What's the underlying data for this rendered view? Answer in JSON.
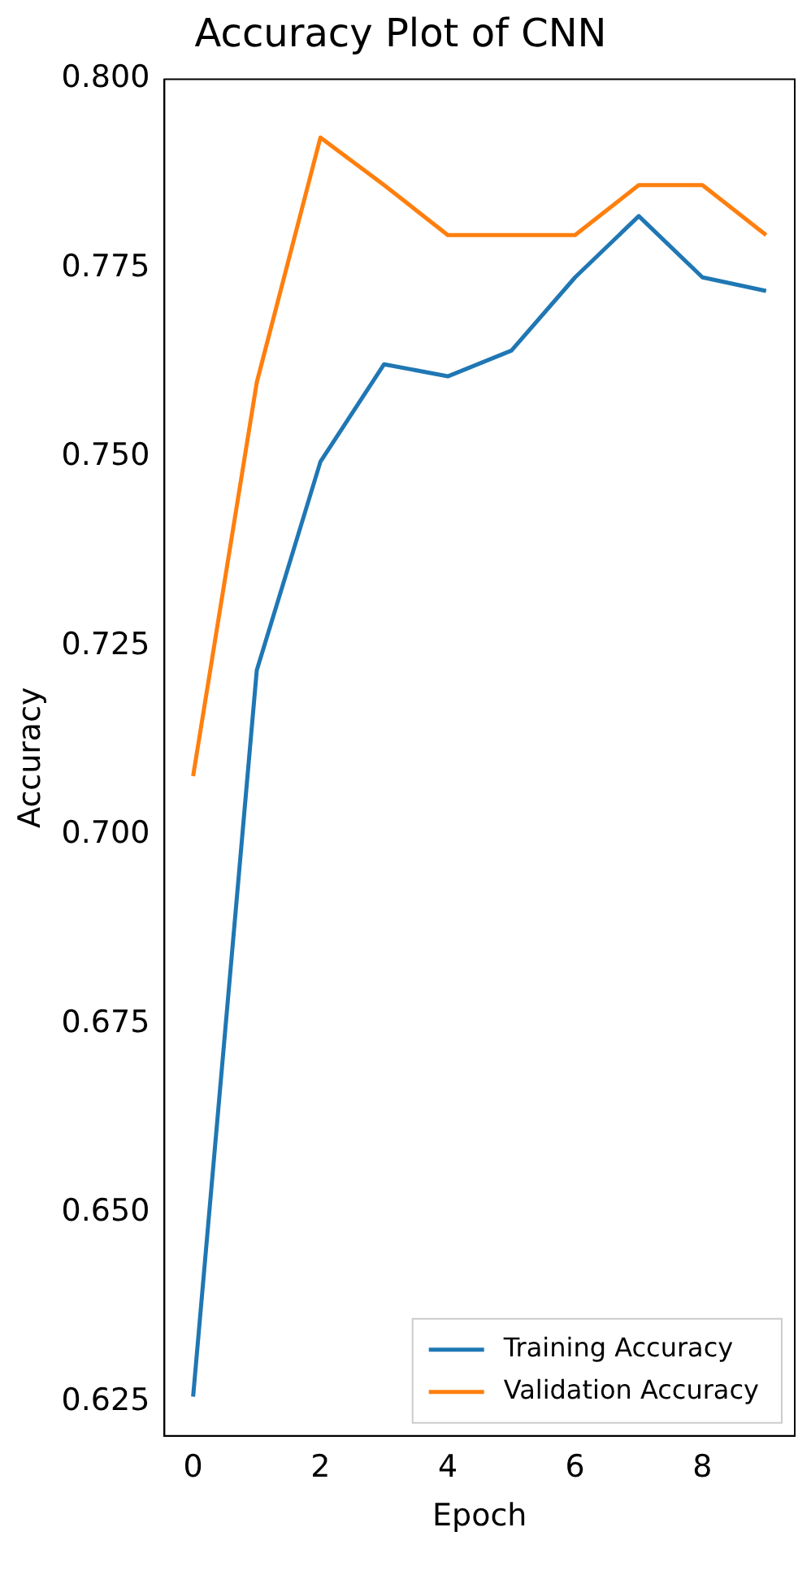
{
  "chart_data": {
    "type": "line",
    "title": "Accuracy Plot of CNN",
    "xlabel": "Epoch",
    "ylabel": "Accuracy",
    "x": [
      0,
      1,
      2,
      3,
      4,
      5,
      6,
      7,
      8,
      9
    ],
    "series": [
      {
        "name": "Training Accuracy",
        "color": "#1f77b4",
        "values": [
          0.6257,
          0.7218,
          0.7494,
          0.7623,
          0.7607,
          0.7641,
          0.7738,
          0.7819,
          0.7738,
          0.772
        ]
      },
      {
        "name": "Validation Accuracy",
        "color": "#ff7f0e",
        "values": [
          0.7078,
          0.7599,
          0.7923,
          0.786,
          0.7794,
          0.7794,
          0.7794,
          0.786,
          0.786,
          0.7794
        ]
      }
    ],
    "xlim": [
      -0.45,
      9.45
    ],
    "xticks": [
      0,
      2,
      4,
      6,
      8
    ],
    "ylim": [
      0.6205,
      0.8
    ],
    "yticks": [
      {
        "value": 0.625,
        "label": "0.625"
      },
      {
        "value": 0.65,
        "label": "0.650"
      },
      {
        "value": 0.675,
        "label": "0.675"
      },
      {
        "value": 0.7,
        "label": "0.700"
      },
      {
        "value": 0.725,
        "label": "0.725"
      },
      {
        "value": 0.75,
        "label": "0.750"
      },
      {
        "value": 0.775,
        "label": "0.775"
      },
      {
        "value": 0.8,
        "label": "0.800"
      }
    ],
    "legend": "bottom right",
    "grid": false,
    "marker": "none",
    "line_style": "solid"
  }
}
